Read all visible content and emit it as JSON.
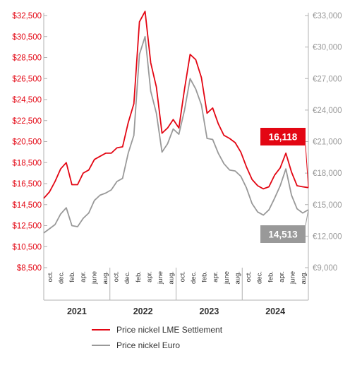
{
  "chart_data": {
    "type": "line",
    "title": "",
    "x_labels": [
      "oct.",
      "dec.",
      "feb.",
      "apr.",
      "june",
      "aug.",
      "oct.",
      "dec.",
      "feb.",
      "apr.",
      "june",
      "aug.",
      "oct.",
      "dec.",
      "feb.",
      "apr.",
      "june",
      "aug.",
      "oct.",
      "dec.",
      "feb.",
      "apr.",
      "june",
      "aug."
    ],
    "years": [
      "2021",
      "2022",
      "2023",
      "2024"
    ],
    "y_left": {
      "ticks": [
        "$8,500",
        "$10,500",
        "$12,500",
        "$14,500",
        "$16,500",
        "$18,500",
        "$20,500",
        "$22,500",
        "$24,500",
        "$26,500",
        "$28,500",
        "$30,500",
        "$32,500"
      ],
      "range": [
        8500,
        32500
      ],
      "color": "#e30613"
    },
    "y_right": {
      "ticks": [
        "€9,000",
        "€12,000",
        "€15,000",
        "€18,000",
        "€21,000",
        "€24,000",
        "€27,000",
        "€30,000",
        "€33,000"
      ],
      "range": [
        9000,
        33000
      ],
      "color": "#999999"
    },
    "series": [
      {
        "name": "Price nickel LME Settlement",
        "axis": "left",
        "color": "#e30613",
        "values": [
          15100,
          15700,
          16700,
          17900,
          18500,
          16400,
          16400,
          17500,
          17800,
          18800,
          19100,
          19400,
          19400,
          19900,
          20000,
          22300,
          24100,
          31900,
          32900,
          28000,
          25700,
          21300,
          21800,
          22600,
          21800,
          25500,
          28800,
          28300,
          26600,
          23200,
          23700,
          22200,
          21100,
          20800,
          20400,
          19500,
          18100,
          16900,
          16300,
          16000,
          16200,
          17300,
          18000,
          19400,
          17600,
          16300,
          16200,
          16118
        ],
        "end_label": "16,118"
      },
      {
        "name": "Price nickel Euro",
        "axis": "right",
        "color": "#999999",
        "values": [
          12300,
          12700,
          13100,
          14100,
          14700,
          13000,
          12900,
          13700,
          14200,
          15400,
          15900,
          16100,
          16400,
          17200,
          17500,
          19900,
          21600,
          29300,
          31000,
          25800,
          23700,
          20000,
          20800,
          22200,
          21700,
          24000,
          27000,
          26000,
          24500,
          21300,
          21200,
          19900,
          18900,
          18300,
          18200,
          17700,
          16600,
          15100,
          14300,
          14000,
          14500,
          15600,
          16800,
          18400,
          15900,
          14600,
          14200,
          14513
        ],
        "end_label": "14,513"
      }
    ]
  }
}
